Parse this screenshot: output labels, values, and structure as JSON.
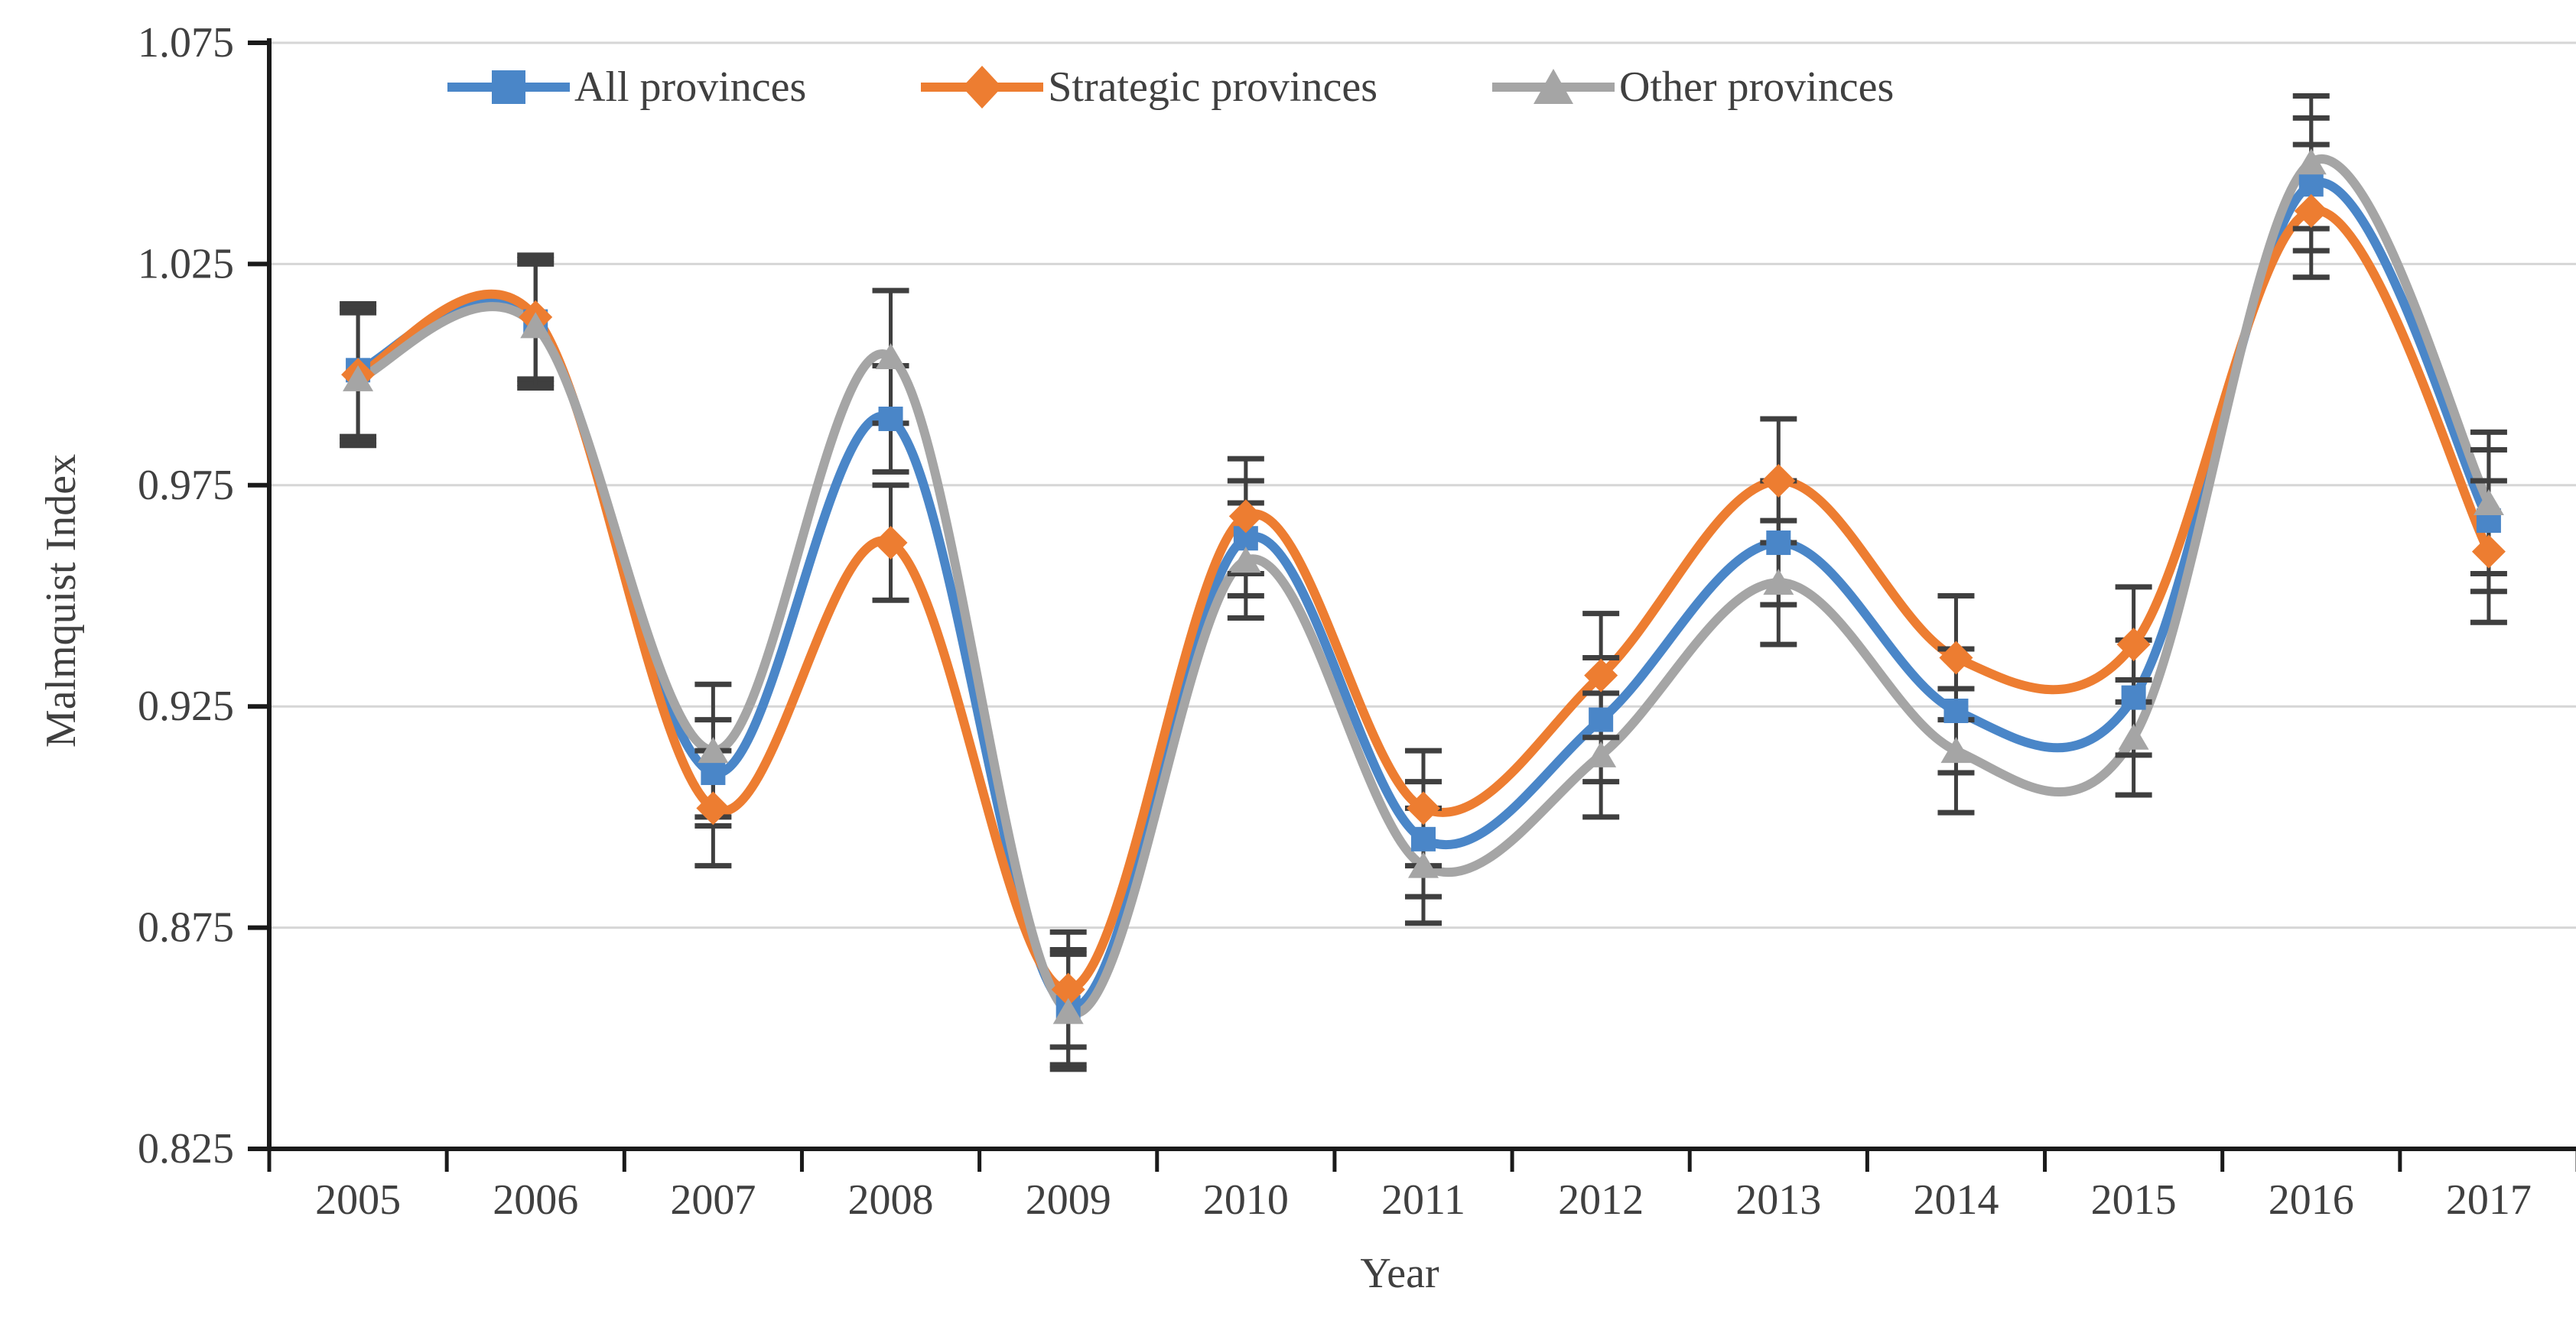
{
  "chart_data": {
    "type": "line",
    "title": "",
    "xlabel": "Year",
    "ylabel": "Malmquist Index",
    "categories": [
      "2005",
      "2006",
      "2007",
      "2008",
      "2009",
      "2010",
      "2011",
      "2012",
      "2013",
      "2014",
      "2015",
      "2016",
      "2017"
    ],
    "ylim": [
      0.825,
      1.075
    ],
    "ytick_labels": [
      "1.075",
      "1.025",
      "0.975",
      "0.925",
      "0.875",
      "0.825"
    ],
    "grid": "horizontal",
    "legend_position": "top-center",
    "smooth": true,
    "error_bars": true,
    "series": [
      {
        "name": "All provinces",
        "marker": "square",
        "color": "#4A86C8",
        "values": [
          1.001,
          1.012,
          0.91,
          0.99,
          0.857,
          0.963,
          0.895,
          0.922,
          0.962,
          0.924,
          0.927,
          1.043,
          0.967
        ],
        "errors": [
          0.015,
          0.014,
          0.012,
          0.012,
          0.013,
          0.013,
          0.013,
          0.014,
          0.014,
          0.014,
          0.013,
          0.015,
          0.016
        ]
      },
      {
        "name": "Strategic provinces",
        "marker": "diamond",
        "color": "#ED7D31",
        "values": [
          1.0,
          1.013,
          0.902,
          0.962,
          0.861,
          0.968,
          0.902,
          0.932,
          0.976,
          0.936,
          0.939,
          1.037,
          0.96
        ],
        "errors": [
          0.015,
          0.014,
          0.013,
          0.013,
          0.013,
          0.013,
          0.013,
          0.014,
          0.014,
          0.014,
          0.013,
          0.015,
          0.016
        ]
      },
      {
        "name": "Other provinces",
        "marker": "triangle",
        "color": "#A5A5A5",
        "values": [
          0.999,
          1.011,
          0.915,
          1.004,
          0.856,
          0.958,
          0.889,
          0.914,
          0.953,
          0.915,
          0.918,
          1.048,
          0.971
        ],
        "errors": [
          0.015,
          0.014,
          0.015,
          0.015,
          0.013,
          0.013,
          0.013,
          0.014,
          0.014,
          0.014,
          0.013,
          0.015,
          0.016
        ]
      }
    ],
    "style_colors": {
      "gridline": "#D6D6D6",
      "axis": "#1A1A1A",
      "tick_label": "#404040",
      "error_bar": "#3F3F3F",
      "legend_text": "#404040"
    }
  }
}
